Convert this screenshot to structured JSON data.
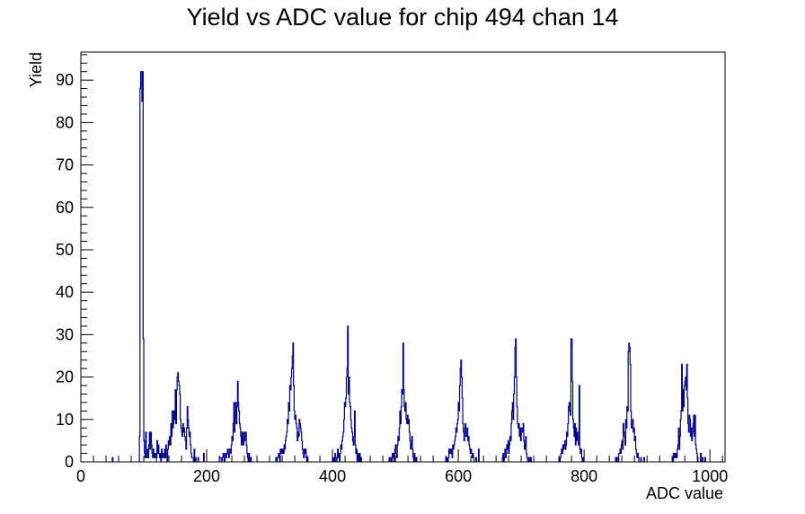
{
  "chart_data": {
    "type": "histogram",
    "title": "Yield vs ADC value for chip 494 chan 14",
    "xlabel": "ADC value",
    "ylabel": "Yield",
    "xlim": [
      0,
      1024
    ],
    "ylim": [
      0,
      96.6
    ],
    "x_ticks": [
      0,
      200,
      400,
      600,
      800,
      1000
    ],
    "y_ticks": [
      0,
      10,
      20,
      30,
      40,
      50,
      60,
      70,
      80,
      90
    ],
    "grid": false,
    "legend": "none",
    "line_color": "#00008b",
    "bin_width": 1,
    "bins": [
      [
        50,
        1
      ],
      [
        93,
        6
      ],
      [
        94,
        88
      ],
      [
        95,
        92
      ],
      [
        96,
        89
      ],
      [
        97,
        85
      ],
      [
        98,
        92
      ],
      [
        99,
        29
      ],
      [
        100,
        5
      ],
      [
        101,
        2
      ],
      [
        102,
        1
      ],
      [
        103,
        7
      ],
      [
        104,
        1
      ],
      [
        105,
        2
      ],
      [
        106,
        3
      ],
      [
        107,
        1
      ],
      [
        108,
        4
      ],
      [
        109,
        7
      ],
      [
        110,
        3
      ],
      [
        111,
        7
      ],
      [
        112,
        4
      ],
      [
        113,
        2
      ],
      [
        114,
        1
      ],
      [
        115,
        3
      ],
      [
        116,
        1
      ],
      [
        117,
        2
      ],
      [
        118,
        2
      ],
      [
        119,
        1
      ],
      [
        120,
        1
      ],
      [
        121,
        5
      ],
      [
        122,
        2
      ],
      [
        123,
        4
      ],
      [
        124,
        2
      ],
      [
        125,
        1
      ],
      [
        126,
        2
      ],
      [
        128,
        3
      ],
      [
        129,
        1
      ],
      [
        130,
        2
      ],
      [
        131,
        1
      ],
      [
        132,
        1
      ],
      [
        133,
        3
      ],
      [
        134,
        1
      ],
      [
        135,
        4
      ],
      [
        136,
        2
      ],
      [
        138,
        3
      ],
      [
        139,
        5
      ],
      [
        140,
        4
      ],
      [
        141,
        6
      ],
      [
        142,
        4
      ],
      [
        143,
        9
      ],
      [
        144,
        6
      ],
      [
        145,
        12
      ],
      [
        146,
        8
      ],
      [
        147,
        9
      ],
      [
        148,
        12
      ],
      [
        149,
        10
      ],
      [
        150,
        17
      ],
      [
        151,
        9
      ],
      [
        152,
        17
      ],
      [
        153,
        20
      ],
      [
        154,
        21
      ],
      [
        155,
        19
      ],
      [
        156,
        18
      ],
      [
        157,
        16
      ],
      [
        158,
        10
      ],
      [
        159,
        8
      ],
      [
        160,
        7
      ],
      [
        161,
        6
      ],
      [
        162,
        9
      ],
      [
        163,
        7
      ],
      [
        164,
        8
      ],
      [
        165,
        6
      ],
      [
        166,
        5
      ],
      [
        167,
        3
      ],
      [
        168,
        8
      ],
      [
        169,
        13
      ],
      [
        170,
        10
      ],
      [
        171,
        8
      ],
      [
        172,
        6
      ],
      [
        173,
        7
      ],
      [
        174,
        4
      ],
      [
        175,
        2
      ],
      [
        176,
        1
      ],
      [
        177,
        1
      ],
      [
        178,
        1
      ],
      [
        180,
        3
      ],
      [
        182,
        1
      ],
      [
        186,
        1
      ],
      [
        195,
        2
      ],
      [
        220,
        1
      ],
      [
        221,
        1
      ],
      [
        222,
        1
      ],
      [
        225,
        1
      ],
      [
        226,
        2
      ],
      [
        227,
        1
      ],
      [
        229,
        2
      ],
      [
        230,
        1
      ],
      [
        231,
        1
      ],
      [
        232,
        2
      ],
      [
        233,
        3
      ],
      [
        234,
        2
      ],
      [
        235,
        1
      ],
      [
        236,
        3
      ],
      [
        237,
        3
      ],
      [
        238,
        2
      ],
      [
        239,
        4
      ],
      [
        240,
        6
      ],
      [
        241,
        5
      ],
      [
        242,
        9
      ],
      [
        243,
        14
      ],
      [
        244,
        7
      ],
      [
        245,
        11
      ],
      [
        246,
        14
      ],
      [
        247,
        9
      ],
      [
        248,
        13
      ],
      [
        249,
        19
      ],
      [
        250,
        14
      ],
      [
        251,
        12
      ],
      [
        252,
        9
      ],
      [
        253,
        8
      ],
      [
        254,
        6
      ],
      [
        255,
        4
      ],
      [
        256,
        7
      ],
      [
        257,
        5
      ],
      [
        258,
        4
      ],
      [
        259,
        7
      ],
      [
        260,
        5
      ],
      [
        261,
        6
      ],
      [
        262,
        7
      ],
      [
        263,
        4
      ],
      [
        264,
        2
      ],
      [
        265,
        1
      ],
      [
        267,
        2
      ],
      [
        269,
        1
      ],
      [
        270,
        1
      ],
      [
        310,
        1
      ],
      [
        312,
        1
      ],
      [
        313,
        1
      ],
      [
        314,
        2
      ],
      [
        315,
        1
      ],
      [
        317,
        3
      ],
      [
        318,
        2
      ],
      [
        319,
        3
      ],
      [
        320,
        2
      ],
      [
        321,
        3
      ],
      [
        322,
        2
      ],
      [
        323,
        4
      ],
      [
        324,
        3
      ],
      [
        325,
        5
      ],
      [
        326,
        6
      ],
      [
        327,
        7
      ],
      [
        328,
        10
      ],
      [
        329,
        9
      ],
      [
        330,
        14
      ],
      [
        331,
        12
      ],
      [
        332,
        18
      ],
      [
        333,
        17
      ],
      [
        334,
        20
      ],
      [
        335,
        22
      ],
      [
        336,
        25
      ],
      [
        337,
        28
      ],
      [
        338,
        18
      ],
      [
        339,
        12
      ],
      [
        340,
        10
      ],
      [
        341,
        11
      ],
      [
        342,
        9
      ],
      [
        343,
        8
      ],
      [
        344,
        5
      ],
      [
        345,
        7
      ],
      [
        346,
        6
      ],
      [
        347,
        10
      ],
      [
        348,
        9
      ],
      [
        349,
        8
      ],
      [
        350,
        7
      ],
      [
        351,
        5
      ],
      [
        352,
        3
      ],
      [
        353,
        2
      ],
      [
        354,
        1
      ],
      [
        355,
        3
      ],
      [
        356,
        2
      ],
      [
        357,
        3
      ],
      [
        358,
        1
      ],
      [
        360,
        1
      ],
      [
        400,
        1
      ],
      [
        402,
        1
      ],
      [
        404,
        2
      ],
      [
        405,
        1
      ],
      [
        407,
        1
      ],
      [
        408,
        3
      ],
      [
        409,
        1
      ],
      [
        410,
        2
      ],
      [
        412,
        2
      ],
      [
        413,
        4
      ],
      [
        414,
        3
      ],
      [
        415,
        5
      ],
      [
        416,
        6
      ],
      [
        417,
        7
      ],
      [
        418,
        10
      ],
      [
        419,
        14
      ],
      [
        420,
        13
      ],
      [
        421,
        15
      ],
      [
        422,
        20
      ],
      [
        423,
        22
      ],
      [
        424,
        32
      ],
      [
        425,
        16
      ],
      [
        426,
        20
      ],
      [
        427,
        14
      ],
      [
        428,
        13
      ],
      [
        429,
        10
      ],
      [
        430,
        8
      ],
      [
        431,
        7
      ],
      [
        432,
        5
      ],
      [
        433,
        4
      ],
      [
        434,
        6
      ],
      [
        435,
        12
      ],
      [
        436,
        4
      ],
      [
        437,
        2
      ],
      [
        438,
        3
      ],
      [
        440,
        1
      ],
      [
        441,
        2
      ],
      [
        443,
        2
      ],
      [
        445,
        1
      ],
      [
        490,
        1
      ],
      [
        493,
        1
      ],
      [
        495,
        2
      ],
      [
        496,
        1
      ],
      [
        497,
        2
      ],
      [
        499,
        3
      ],
      [
        500,
        4
      ],
      [
        501,
        2
      ],
      [
        502,
        1
      ],
      [
        503,
        4
      ],
      [
        504,
        6
      ],
      [
        505,
        5
      ],
      [
        506,
        8
      ],
      [
        507,
        12
      ],
      [
        508,
        9
      ],
      [
        509,
        13
      ],
      [
        510,
        17
      ],
      [
        511,
        16
      ],
      [
        512,
        28
      ],
      [
        513,
        17
      ],
      [
        514,
        13
      ],
      [
        515,
        12
      ],
      [
        516,
        14
      ],
      [
        517,
        10
      ],
      [
        518,
        9
      ],
      [
        519,
        11
      ],
      [
        520,
        9
      ],
      [
        521,
        10
      ],
      [
        522,
        7
      ],
      [
        523,
        5
      ],
      [
        524,
        3
      ],
      [
        525,
        4
      ],
      [
        526,
        6
      ],
      [
        527,
        3
      ],
      [
        528,
        1
      ],
      [
        530,
        2
      ],
      [
        531,
        1
      ],
      [
        533,
        1
      ],
      [
        580,
        1
      ],
      [
        582,
        1
      ],
      [
        584,
        1
      ],
      [
        585,
        3
      ],
      [
        586,
        2
      ],
      [
        587,
        3
      ],
      [
        588,
        2
      ],
      [
        589,
        3
      ],
      [
        590,
        1
      ],
      [
        591,
        4
      ],
      [
        592,
        3
      ],
      [
        593,
        4
      ],
      [
        594,
        5
      ],
      [
        595,
        6
      ],
      [
        596,
        8
      ],
      [
        597,
        7
      ],
      [
        598,
        9
      ],
      [
        599,
        10
      ],
      [
        600,
        14
      ],
      [
        601,
        12
      ],
      [
        602,
        18
      ],
      [
        603,
        22
      ],
      [
        604,
        24
      ],
      [
        605,
        20
      ],
      [
        606,
        15
      ],
      [
        607,
        9
      ],
      [
        608,
        7
      ],
      [
        609,
        5
      ],
      [
        610,
        8
      ],
      [
        611,
        9
      ],
      [
        612,
        6
      ],
      [
        613,
        7
      ],
      [
        614,
        8
      ],
      [
        615,
        5
      ],
      [
        616,
        6
      ],
      [
        617,
        4
      ],
      [
        618,
        3
      ],
      [
        619,
        2
      ],
      [
        620,
        3
      ],
      [
        621,
        2
      ],
      [
        622,
        1
      ],
      [
        623,
        2
      ],
      [
        624,
        1
      ],
      [
        628,
        1
      ],
      [
        632,
        3
      ],
      [
        670,
        1
      ],
      [
        671,
        2
      ],
      [
        673,
        1
      ],
      [
        674,
        3
      ],
      [
        675,
        1
      ],
      [
        676,
        2
      ],
      [
        677,
        4
      ],
      [
        678,
        3
      ],
      [
        679,
        5
      ],
      [
        680,
        2
      ],
      [
        681,
        4
      ],
      [
        682,
        6
      ],
      [
        683,
        5
      ],
      [
        684,
        9
      ],
      [
        685,
        12
      ],
      [
        686,
        14
      ],
      [
        687,
        10
      ],
      [
        688,
        16
      ],
      [
        689,
        20
      ],
      [
        690,
        27
      ],
      [
        691,
        29
      ],
      [
        692,
        20
      ],
      [
        693,
        13
      ],
      [
        694,
        9
      ],
      [
        695,
        8
      ],
      [
        696,
        9
      ],
      [
        697,
        6
      ],
      [
        698,
        8
      ],
      [
        699,
        5
      ],
      [
        700,
        7
      ],
      [
        701,
        8
      ],
      [
        702,
        7
      ],
      [
        703,
        9
      ],
      [
        704,
        5
      ],
      [
        705,
        3
      ],
      [
        706,
        4
      ],
      [
        707,
        6
      ],
      [
        708,
        2
      ],
      [
        709,
        1
      ],
      [
        712,
        1
      ],
      [
        715,
        1
      ],
      [
        760,
        1
      ],
      [
        762,
        1
      ],
      [
        763,
        2
      ],
      [
        764,
        3
      ],
      [
        765,
        2
      ],
      [
        766,
        4
      ],
      [
        767,
        3
      ],
      [
        768,
        4
      ],
      [
        769,
        5
      ],
      [
        770,
        3
      ],
      [
        771,
        4
      ],
      [
        772,
        7
      ],
      [
        773,
        6
      ],
      [
        774,
        9
      ],
      [
        775,
        13
      ],
      [
        776,
        14
      ],
      [
        777,
        12
      ],
      [
        778,
        11
      ],
      [
        779,
        29
      ],
      [
        780,
        29
      ],
      [
        781,
        19
      ],
      [
        782,
        10
      ],
      [
        783,
        8
      ],
      [
        784,
        6
      ],
      [
        785,
        9
      ],
      [
        786,
        4
      ],
      [
        787,
        8
      ],
      [
        788,
        5
      ],
      [
        789,
        7
      ],
      [
        790,
        6
      ],
      [
        791,
        4
      ],
      [
        792,
        18
      ],
      [
        793,
        3
      ],
      [
        794,
        2
      ],
      [
        795,
        3
      ],
      [
        796,
        1
      ],
      [
        798,
        1
      ],
      [
        850,
        1
      ],
      [
        852,
        1
      ],
      [
        853,
        1
      ],
      [
        855,
        2
      ],
      [
        856,
        2
      ],
      [
        857,
        3
      ],
      [
        858,
        2
      ],
      [
        859,
        4
      ],
      [
        860,
        5
      ],
      [
        861,
        3
      ],
      [
        862,
        9
      ],
      [
        863,
        7
      ],
      [
        864,
        6
      ],
      [
        865,
        4
      ],
      [
        866,
        10
      ],
      [
        867,
        8
      ],
      [
        868,
        13
      ],
      [
        869,
        12
      ],
      [
        870,
        26
      ],
      [
        871,
        28
      ],
      [
        872,
        27
      ],
      [
        873,
        23
      ],
      [
        874,
        12
      ],
      [
        875,
        8
      ],
      [
        876,
        9
      ],
      [
        877,
        10
      ],
      [
        878,
        7
      ],
      [
        879,
        8
      ],
      [
        880,
        5
      ],
      [
        881,
        6
      ],
      [
        882,
        3
      ],
      [
        883,
        2
      ],
      [
        884,
        1
      ],
      [
        885,
        2
      ],
      [
        886,
        1
      ],
      [
        890,
        1
      ],
      [
        895,
        1
      ],
      [
        940,
        1
      ],
      [
        942,
        2
      ],
      [
        943,
        1
      ],
      [
        944,
        2
      ],
      [
        945,
        1
      ],
      [
        946,
        2
      ],
      [
        947,
        1
      ],
      [
        948,
        3
      ],
      [
        949,
        4
      ],
      [
        950,
        8
      ],
      [
        951,
        3
      ],
      [
        952,
        6
      ],
      [
        953,
        10
      ],
      [
        954,
        12
      ],
      [
        955,
        23
      ],
      [
        956,
        12
      ],
      [
        957,
        17
      ],
      [
        958,
        13
      ],
      [
        959,
        18
      ],
      [
        960,
        19
      ],
      [
        961,
        20
      ],
      [
        962,
        17
      ],
      [
        963,
        23
      ],
      [
        964,
        15
      ],
      [
        965,
        9
      ],
      [
        966,
        7
      ],
      [
        967,
        11
      ],
      [
        968,
        10
      ],
      [
        969,
        6
      ],
      [
        970,
        8
      ],
      [
        971,
        5
      ],
      [
        972,
        7
      ],
      [
        973,
        9
      ],
      [
        974,
        11
      ],
      [
        975,
        6
      ],
      [
        976,
        11
      ],
      [
        977,
        4
      ],
      [
        978,
        3
      ],
      [
        979,
        2
      ],
      [
        980,
        1
      ],
      [
        985,
        2
      ],
      [
        988,
        1
      ],
      [
        992,
        1
      ]
    ]
  }
}
